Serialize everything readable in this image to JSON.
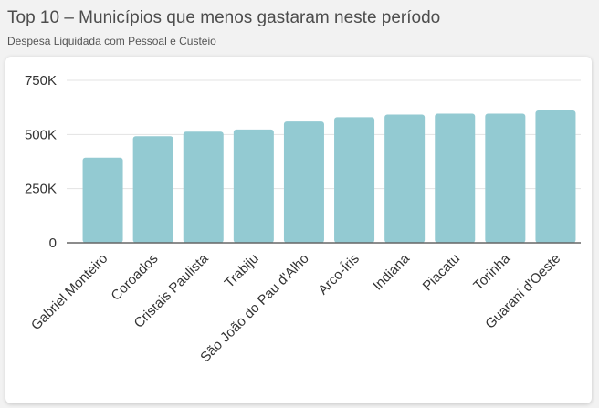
{
  "header": {
    "title": "Top 10 – Municípios que menos gastaram neste período",
    "subtitle": "Despesa Liquidada com Pessoal e Custeio"
  },
  "chart_data": {
    "type": "bar",
    "title": "Top 10 – Municípios que menos gastaram neste período",
    "subtitle": "Despesa Liquidada com Pessoal e Custeio",
    "categories": [
      "Gabriel Monteiro",
      "Coroados",
      "Cristais Paulista",
      "Trabiju",
      "São João do Pau d'Alho",
      "Arco-Íris",
      "Indiana",
      "Piacatu",
      "Torinha",
      "Guarani d'Oeste"
    ],
    "values": [
      393000,
      492000,
      513000,
      523000,
      560000,
      580000,
      592000,
      596000,
      596000,
      611000
    ],
    "ylim": [
      0,
      750000
    ],
    "yticks": [
      0,
      250000,
      500000,
      750000
    ],
    "ytick_labels": [
      "0",
      "250K",
      "500K",
      "750K"
    ],
    "grid": true,
    "bar_color": "#93cad2"
  }
}
